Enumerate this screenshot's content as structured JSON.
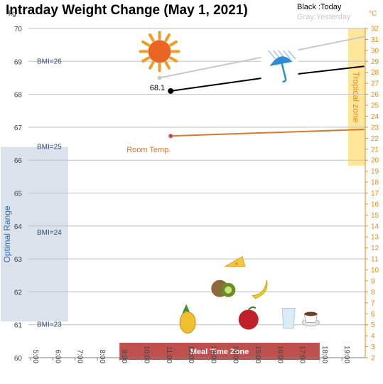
{
  "chart_data": {
    "type": "line",
    "title": "Intraday Weight Change (May 1, 2021)",
    "y_unit": "kg",
    "y2_unit": "°C",
    "ylim": [
      60,
      70
    ],
    "y_ticks": [
      "60",
      "61",
      "62",
      "63",
      "64",
      "65",
      "66",
      "67",
      "68",
      "69",
      "70"
    ],
    "y2lim": [
      2,
      32
    ],
    "y2_ticks": [
      "2",
      "3",
      "4",
      "5",
      "6",
      "7",
      "8",
      "9",
      "10",
      "11",
      "12",
      "13",
      "14",
      "15",
      "16",
      "17",
      "18",
      "19",
      "20",
      "21",
      "22",
      "23",
      "24",
      "25",
      "26",
      "27",
      "28",
      "29",
      "30",
      "31",
      "32"
    ],
    "x_hours": [
      5,
      6,
      7,
      8,
      9,
      10,
      11,
      12,
      13,
      14,
      15,
      16,
      17,
      18,
      19
    ],
    "x_ticks": [
      "5:00",
      "6:00",
      "7:00",
      "8:00",
      "9:00",
      "10:00",
      "11:00",
      "12:00",
      "13:00",
      "14:00",
      "15:00",
      "16:00",
      "17:00",
      "18:00",
      "19:00"
    ],
    "grid": true,
    "legend": {
      "today": "Black :Today",
      "yesterday": "Gray:Yesterday"
    },
    "series": [
      {
        "name": "Today",
        "color": "#000000",
        "points": [
          {
            "x": 11.3,
            "y": 68.1
          },
          {
            "x": 15.5,
            "y": 68.5
          },
          {
            "x": 20.0,
            "y": 68.85
          }
        ],
        "label": "68.1"
      },
      {
        "name": "Yesterday",
        "color": "#c8c8c8",
        "points": [
          {
            "x": 10.8,
            "y": 68.5
          },
          {
            "x": 20.0,
            "y": 69.75
          }
        ]
      },
      {
        "name": "Room Temp.",
        "color": "#d9782d",
        "axis": "right",
        "points": [
          {
            "x": 11.3,
            "y": 22.2
          },
          {
            "x": 20.0,
            "y": 22.8
          }
        ],
        "label": "Room Temp."
      }
    ],
    "bmi_lines": [
      {
        "label": "BMI=26",
        "y": 69.0
      },
      {
        "label": "BMI=25",
        "y": 66.4
      },
      {
        "label": "BMI=24",
        "y": 63.8
      },
      {
        "label": "BMI=23",
        "y": 61.0
      }
    ],
    "bands": {
      "optimal": {
        "label": "Optimal Range",
        "ymin": 61.1,
        "ymax": 66.4,
        "color": "#dbe2ec"
      },
      "tropical": {
        "label": "Tropical zone",
        "y2min": 19.5,
        "y2max": 32,
        "color": "#ffe699"
      },
      "meal": {
        "label": "Meal Time Zone",
        "xmin": 9.0,
        "xmax": 18.0,
        "color": "#c0504d"
      }
    },
    "icons": [
      {
        "name": "sun-icon",
        "x": 10.8,
        "y": 69.3
      },
      {
        "name": "umbrella-rain-icon",
        "x": 16.2,
        "y": 68.9
      },
      {
        "name": "cheese-icon",
        "x": 14.2,
        "y": 62.9
      },
      {
        "name": "kiwi-icon",
        "x": 13.7,
        "y": 62.1
      },
      {
        "name": "banana-icon",
        "x": 15.3,
        "y": 62.1
      },
      {
        "name": "pineapple-icon",
        "x": 12.0,
        "y": 61.2
      },
      {
        "name": "apple-icon",
        "x": 14.8,
        "y": 61.2
      },
      {
        "name": "water-glass-icon",
        "x": 16.6,
        "y": 61.2
      },
      {
        "name": "coffee-cup-icon",
        "x": 17.6,
        "y": 61.2
      }
    ]
  }
}
